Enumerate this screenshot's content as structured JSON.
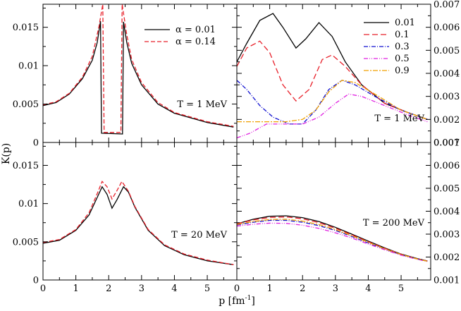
{
  "figure": {
    "ylabel_left": "K(p)",
    "xlabel": "p [fm",
    "xlabel_sup": "-1",
    "xlabel_tail": "]"
  },
  "chart_data": [
    {
      "id": "top-left",
      "type": "line",
      "annotation": "T = 1 MeV",
      "xlim": [
        0,
        5.9
      ],
      "ylim": [
        0,
        0.018
      ],
      "xticks": [
        0,
        1,
        2,
        3,
        4,
        5
      ],
      "xtick_labels_shown": false,
      "yticks": [
        0,
        0.005,
        0.01,
        0.015
      ],
      "ytick_labels": [
        "0",
        "0.005",
        "0.01",
        "0.015"
      ],
      "ytick_side": "left",
      "legend": {
        "position": "top-right",
        "prefix": "α",
        "entries": [
          "α = 0.01",
          "α = 0.14"
        ]
      },
      "series": [
        {
          "name": "α = 0.01",
          "label": "0.01",
          "color": "#000000",
          "dash": "solid",
          "points": [
            [
              0,
              0.0048
            ],
            [
              0.4,
              0.0052
            ],
            [
              0.8,
              0.0063
            ],
            [
              1.2,
              0.0083
            ],
            [
              1.5,
              0.0107
            ],
            [
              1.65,
              0.013
            ],
            [
              1.75,
              0.0158
            ],
            [
              1.78,
              0.0012
            ],
            [
              2.42,
              0.0011
            ],
            [
              2.45,
              0.0157
            ],
            [
              2.55,
              0.013
            ],
            [
              2.7,
              0.0103
            ],
            [
              3.0,
              0.0075
            ],
            [
              3.5,
              0.005
            ],
            [
              4.0,
              0.0038
            ],
            [
              5.0,
              0.0026
            ],
            [
              5.8,
              0.002
            ]
          ]
        },
        {
          "name": "α = 0.14",
          "label": "0.14",
          "color": "#e8202a",
          "dash": "6,3",
          "points": [
            [
              0,
              0.0049
            ],
            [
              0.4,
              0.0053
            ],
            [
              0.8,
              0.0064
            ],
            [
              1.2,
              0.0085
            ],
            [
              1.5,
              0.0112
            ],
            [
              1.7,
              0.015
            ],
            [
              1.82,
              0.018
            ],
            [
              1.86,
              0.0013
            ],
            [
              2.37,
              0.0013
            ],
            [
              2.41,
              0.018
            ],
            [
              2.55,
              0.014
            ],
            [
              2.7,
              0.0108
            ],
            [
              3.0,
              0.0078
            ],
            [
              3.5,
              0.0052
            ],
            [
              4.0,
              0.0039
            ],
            [
              5.0,
              0.0027
            ],
            [
              5.8,
              0.0021
            ]
          ]
        }
      ]
    },
    {
      "id": "top-right",
      "type": "line",
      "annotation": "T = 1 MeV",
      "xlim": [
        0,
        5.9
      ],
      "ylim": [
        0.001,
        0.007
      ],
      "xticks": [
        0,
        1,
        2,
        3,
        4,
        5
      ],
      "xtick_labels_shown": false,
      "yticks": [
        0.001,
        0.002,
        0.003,
        0.004,
        0.005,
        0.006,
        0.007
      ],
      "ytick_labels": [
        "0.001",
        "0.002",
        "0.003",
        "0.004",
        "0.005",
        "0.006",
        "0.007"
      ],
      "ytick_side": "right",
      "legend": {
        "position": "top-right",
        "entries": [
          "0.01",
          "0.1",
          "0.3",
          "0.5",
          "0.9"
        ]
      },
      "series": [
        {
          "name": "0.01",
          "label": "0.01",
          "color": "#000000",
          "dash": "solid",
          "points": [
            [
              0,
              0.0045
            ],
            [
              0.3,
              0.0053
            ],
            [
              0.7,
              0.0063
            ],
            [
              1.1,
              0.0066
            ],
            [
              1.4,
              0.006
            ],
            [
              1.8,
              0.0051
            ],
            [
              2.1,
              0.0055
            ],
            [
              2.5,
              0.0062
            ],
            [
              2.9,
              0.0056
            ],
            [
              3.3,
              0.0045
            ],
            [
              3.8,
              0.0035
            ],
            [
              4.5,
              0.0027
            ],
            [
              5.2,
              0.0023
            ],
            [
              5.8,
              0.002
            ]
          ]
        },
        {
          "name": "0.1",
          "label": "0.1",
          "color": "#e8202a",
          "dash": "8,4",
          "points": [
            [
              0,
              0.0043
            ],
            [
              0.3,
              0.0051
            ],
            [
              0.7,
              0.0054
            ],
            [
              1.0,
              0.0049
            ],
            [
              1.4,
              0.0035
            ],
            [
              1.8,
              0.0028
            ],
            [
              2.2,
              0.0033
            ],
            [
              2.6,
              0.0046
            ],
            [
              2.9,
              0.0048
            ],
            [
              3.3,
              0.0043
            ],
            [
              3.8,
              0.0035
            ],
            [
              4.5,
              0.0027
            ],
            [
              5.2,
              0.0023
            ],
            [
              5.8,
              0.002
            ]
          ]
        },
        {
          "name": "0.3",
          "label": "0.3",
          "color": "#1010d0",
          "dash": "6,2,1,2",
          "points": [
            [
              0,
              0.0037
            ],
            [
              0.3,
              0.0033
            ],
            [
              0.7,
              0.0026
            ],
            [
              1.1,
              0.0021
            ],
            [
              1.6,
              0.0018
            ],
            [
              2.0,
              0.0018
            ],
            [
              2.4,
              0.0024
            ],
            [
              2.8,
              0.0033
            ],
            [
              3.2,
              0.0037
            ],
            [
              3.6,
              0.0035
            ],
            [
              4.2,
              0.003
            ],
            [
              5.0,
              0.0024
            ],
            [
              5.8,
              0.002
            ]
          ]
        },
        {
          "name": "0.5",
          "label": "0.5",
          "color": "#e020e0",
          "dash": "6,2,1,2,1,2",
          "points": [
            [
              0,
              0.0012
            ],
            [
              0.4,
              0.0014
            ],
            [
              0.9,
              0.0018
            ],
            [
              1.4,
              0.0018
            ],
            [
              2.0,
              0.0018
            ],
            [
              2.5,
              0.0021
            ],
            [
              3.0,
              0.0027
            ],
            [
              3.4,
              0.0031
            ],
            [
              3.8,
              0.003
            ],
            [
              4.5,
              0.0026
            ],
            [
              5.2,
              0.0022
            ],
            [
              5.8,
              0.0019
            ]
          ]
        },
        {
          "name": "0.9",
          "label": "0.9",
          "color": "#f0a000",
          "dash": "7,2,2,2",
          "points": [
            [
              0,
              0.0019
            ],
            [
              0.5,
              0.0019
            ],
            [
              1.0,
              0.0019
            ],
            [
              1.5,
              0.0019
            ],
            [
              2.0,
              0.002
            ],
            [
              2.4,
              0.0024
            ],
            [
              2.8,
              0.0032
            ],
            [
              3.2,
              0.0037
            ],
            [
              3.6,
              0.0036
            ],
            [
              4.2,
              0.0031
            ],
            [
              5.0,
              0.0024
            ],
            [
              5.8,
              0.002
            ]
          ]
        }
      ]
    },
    {
      "id": "bottom-left",
      "type": "line",
      "annotation": "T = 20 MeV",
      "xlim": [
        0,
        5.9
      ],
      "ylim": [
        0,
        0.018
      ],
      "xticks": [
        0,
        1,
        2,
        3,
        4,
        5
      ],
      "xtick_labels": [
        "0",
        "1",
        "2",
        "3",
        "4",
        "5"
      ],
      "yticks": [
        0,
        0.005,
        0.01,
        0.015
      ],
      "ytick_labels": [
        "0",
        "0.005",
        "0.01",
        "0.015"
      ],
      "ytick_side": "left",
      "series": [
        {
          "name": "α = 0.01",
          "label": "0.01",
          "color": "#000000",
          "dash": "solid",
          "points": [
            [
              0,
              0.0048
            ],
            [
              0.5,
              0.0052
            ],
            [
              1.0,
              0.0065
            ],
            [
              1.4,
              0.0085
            ],
            [
              1.65,
              0.0108
            ],
            [
              1.8,
              0.0122
            ],
            [
              1.95,
              0.0112
            ],
            [
              2.1,
              0.0094
            ],
            [
              2.25,
              0.0105
            ],
            [
              2.45,
              0.0122
            ],
            [
              2.6,
              0.0115
            ],
            [
              2.8,
              0.0095
            ],
            [
              3.2,
              0.0065
            ],
            [
              3.7,
              0.0045
            ],
            [
              4.3,
              0.0033
            ],
            [
              5.0,
              0.0025
            ],
            [
              5.8,
              0.002
            ]
          ]
        },
        {
          "name": "α = 0.14",
          "label": "0.14",
          "color": "#e8202a",
          "dash": "6,3",
          "points": [
            [
              0,
              0.0049
            ],
            [
              0.5,
              0.0053
            ],
            [
              1.0,
              0.0066
            ],
            [
              1.4,
              0.0088
            ],
            [
              1.65,
              0.0113
            ],
            [
              1.8,
              0.0129
            ],
            [
              1.95,
              0.0122
            ],
            [
              2.1,
              0.0106
            ],
            [
              2.25,
              0.0117
            ],
            [
              2.4,
              0.0129
            ],
            [
              2.6,
              0.0116
            ],
            [
              2.8,
              0.0096
            ],
            [
              3.2,
              0.0066
            ],
            [
              3.7,
              0.0046
            ],
            [
              4.3,
              0.0034
            ],
            [
              5.0,
              0.0026
            ],
            [
              5.8,
              0.002
            ]
          ]
        }
      ]
    },
    {
      "id": "bottom-right",
      "type": "line",
      "annotation": "T = 200 MeV",
      "xlim": [
        0,
        5.9
      ],
      "ylim": [
        0.001,
        0.007
      ],
      "xticks": [
        0,
        1,
        2,
        3,
        4,
        5
      ],
      "xtick_labels": [
        "0",
        "1",
        "2",
        "3",
        "4",
        "5"
      ],
      "yticks": [
        0.001,
        0.002,
        0.003,
        0.004,
        0.005,
        0.006,
        0.007
      ],
      "ytick_labels": [
        "0.001",
        "0.002",
        "0.003",
        "0.004",
        "0.005",
        "0.006",
        "0.007"
      ],
      "ytick_side": "right",
      "series": [
        {
          "name": "0.01",
          "label": "0.01",
          "color": "#000000",
          "dash": "solid",
          "points": [
            [
              0,
              0.00345
            ],
            [
              0.5,
              0.00365
            ],
            [
              1.0,
              0.00378
            ],
            [
              1.5,
              0.0038
            ],
            [
              2.0,
              0.00372
            ],
            [
              2.5,
              0.00355
            ],
            [
              3.0,
              0.0033
            ],
            [
              3.5,
              0.003
            ],
            [
              4.0,
              0.0027
            ],
            [
              4.5,
              0.0024
            ],
            [
              5.0,
              0.00213
            ],
            [
              5.5,
              0.00193
            ],
            [
              5.8,
              0.00183
            ]
          ]
        },
        {
          "name": "0.1",
          "label": "0.1",
          "color": "#e8202a",
          "dash": "8,4",
          "points": [
            [
              0,
              0.00345
            ],
            [
              0.5,
              0.00362
            ],
            [
              1.0,
              0.00373
            ],
            [
              1.5,
              0.00375
            ],
            [
              2.0,
              0.00367
            ],
            [
              2.5,
              0.0035
            ],
            [
              3.0,
              0.00326
            ],
            [
              3.5,
              0.00297
            ],
            [
              4.0,
              0.00267
            ],
            [
              4.5,
              0.00238
            ],
            [
              5.0,
              0.00212
            ],
            [
              5.5,
              0.00192
            ],
            [
              5.8,
              0.00183
            ]
          ]
        },
        {
          "name": "0.3",
          "label": "0.3",
          "color": "#1010d0",
          "dash": "6,2,1,2",
          "points": [
            [
              0,
              0.0034
            ],
            [
              0.5,
              0.00352
            ],
            [
              1.0,
              0.0036
            ],
            [
              1.5,
              0.0036
            ],
            [
              2.0,
              0.00352
            ],
            [
              2.5,
              0.00337
            ],
            [
              3.0,
              0.00316
            ],
            [
              3.5,
              0.0029
            ],
            [
              4.0,
              0.00262
            ],
            [
              4.5,
              0.00235
            ],
            [
              5.0,
              0.0021
            ],
            [
              5.5,
              0.00191
            ],
            [
              5.8,
              0.00182
            ]
          ]
        },
        {
          "name": "0.5",
          "label": "0.5",
          "color": "#e020e0",
          "dash": "6,2,1,2,1,2",
          "points": [
            [
              0,
              0.00335
            ],
            [
              0.5,
              0.00343
            ],
            [
              1.0,
              0.00348
            ],
            [
              1.5,
              0.00347
            ],
            [
              2.0,
              0.00339
            ],
            [
              2.5,
              0.00325
            ],
            [
              3.0,
              0.00306
            ],
            [
              3.5,
              0.00283
            ],
            [
              4.0,
              0.00257
            ],
            [
              4.5,
              0.00232
            ],
            [
              5.0,
              0.00208
            ],
            [
              5.5,
              0.0019
            ],
            [
              5.8,
              0.00181
            ]
          ]
        },
        {
          "name": "0.9",
          "label": "0.9",
          "color": "#f0a000",
          "dash": "7,2,2,2",
          "points": [
            [
              0,
              0.00342
            ],
            [
              0.5,
              0.00355
            ],
            [
              1.0,
              0.00364
            ],
            [
              1.5,
              0.00365
            ],
            [
              2.0,
              0.00357
            ],
            [
              2.5,
              0.00342
            ],
            [
              3.0,
              0.0032
            ],
            [
              3.5,
              0.00293
            ],
            [
              4.0,
              0.00264
            ],
            [
              4.5,
              0.00236
            ],
            [
              5.0,
              0.00211
            ],
            [
              5.5,
              0.00191
            ],
            [
              5.8,
              0.00182
            ]
          ]
        }
      ]
    }
  ]
}
